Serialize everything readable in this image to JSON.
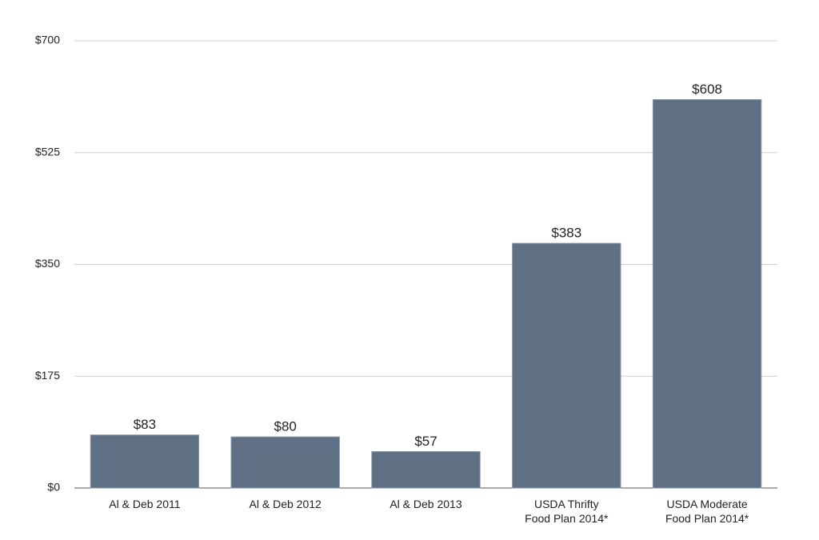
{
  "chart_data": {
    "type": "bar",
    "categories": [
      "Al & Deb 2011",
      "Al & Deb 2012",
      "Al & Deb 2013",
      "USDA Thrifty\nFood Plan 2014*",
      "USDA Moderate\nFood Plan 2014*"
    ],
    "values": [
      83,
      80,
      57,
      383,
      608
    ],
    "value_labels": [
      "$83",
      "$80",
      "$57",
      "$383",
      "$608"
    ],
    "color": "#5f6f84",
    "ylim": [
      0,
      700
    ],
    "yticks": [
      {
        "value": 0,
        "label": "$0"
      },
      {
        "value": 175,
        "label": "$175"
      },
      {
        "value": 350,
        "label": "$350"
      },
      {
        "value": 525,
        "label": "$525"
      },
      {
        "value": 700,
        "label": "$700"
      }
    ],
    "grid": true
  }
}
